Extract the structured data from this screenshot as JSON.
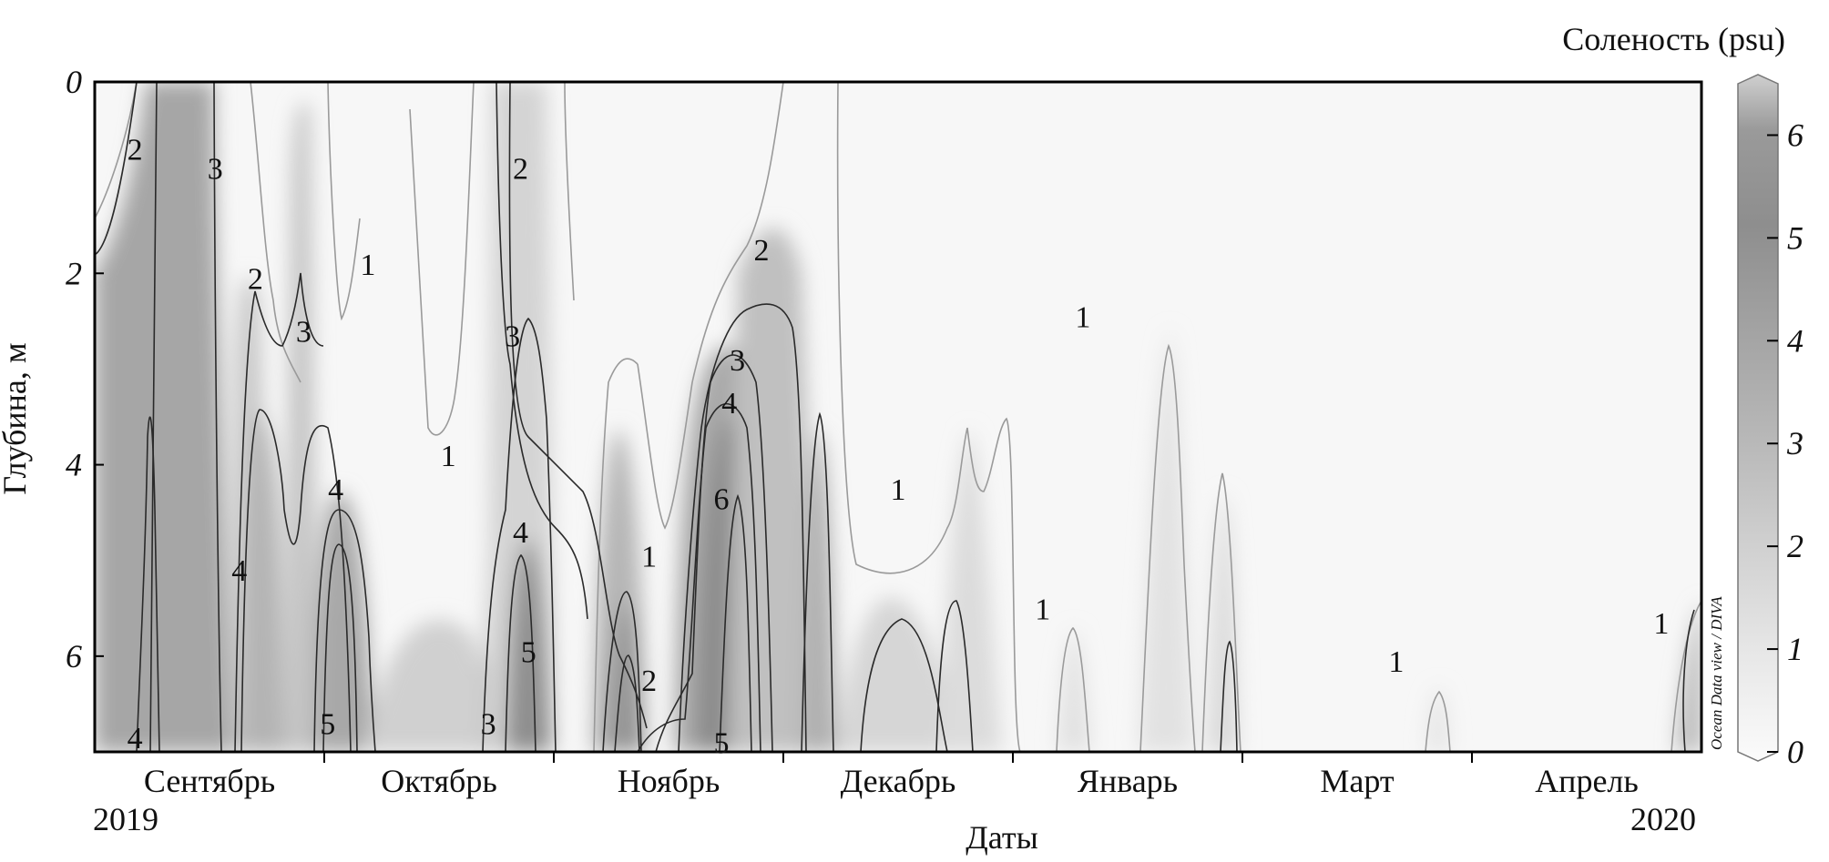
{
  "chart_data": {
    "type": "heatmap",
    "ylabel": "Глубина, м",
    "xlabel": "Даты",
    "colorbar_title": "Соленость (psu)",
    "watermark": "Ocean Data view / DIVA",
    "year_start": "2019",
    "year_end": "2020",
    "colorscale": "grayscale",
    "ylim": [
      7,
      0
    ],
    "yaxis_inverted": true,
    "y_ticks": [
      "0",
      "2",
      "4",
      "6"
    ],
    "x_ticks": [
      "Сентябрь",
      "Октябрь",
      "Ноябрь",
      "Декабрь",
      "Январь",
      "Март",
      "Апрель"
    ],
    "colorbar_range": [
      0,
      6.5
    ],
    "colorbar_ticks": [
      "0",
      "1",
      "2",
      "3",
      "4",
      "5",
      "6"
    ],
    "contour_levels": [
      1,
      2,
      3,
      4,
      5,
      6
    ],
    "contour_labels": [
      {
        "text": "2",
        "x": 0.025,
        "y": 0.7
      },
      {
        "text": "3",
        "x": 0.075,
        "y": 0.9
      },
      {
        "text": "2",
        "x": 0.1,
        "y": 2.05
      },
      {
        "text": "3",
        "x": 0.13,
        "y": 2.6
      },
      {
        "text": "4",
        "x": 0.09,
        "y": 5.1
      },
      {
        "text": "4",
        "x": 0.025,
        "y": 6.85
      },
      {
        "text": "4",
        "x": 0.15,
        "y": 4.25
      },
      {
        "text": "5",
        "x": 0.145,
        "y": 6.7
      },
      {
        "text": "1",
        "x": 0.17,
        "y": 1.9
      },
      {
        "text": "1",
        "x": 0.22,
        "y": 3.9
      },
      {
        "text": "2",
        "x": 0.265,
        "y": 0.9
      },
      {
        "text": "3",
        "x": 0.26,
        "y": 2.65
      },
      {
        "text": "4",
        "x": 0.265,
        "y": 4.7
      },
      {
        "text": "5",
        "x": 0.27,
        "y": 5.95
      },
      {
        "text": "3",
        "x": 0.245,
        "y": 6.7
      },
      {
        "text": "1",
        "x": 0.345,
        "y": 4.95
      },
      {
        "text": "2",
        "x": 0.345,
        "y": 6.25
      },
      {
        "text": "2",
        "x": 0.415,
        "y": 1.75
      },
      {
        "text": "3",
        "x": 0.4,
        "y": 2.9
      },
      {
        "text": "4",
        "x": 0.395,
        "y": 3.35
      },
      {
        "text": "6",
        "x": 0.39,
        "y": 4.35
      },
      {
        "text": "5",
        "x": 0.39,
        "y": 6.9
      },
      {
        "text": "1",
        "x": 0.5,
        "y": 4.25
      },
      {
        "text": "1",
        "x": 0.615,
        "y": 2.45
      },
      {
        "text": "1",
        "x": 0.59,
        "y": 5.5
      },
      {
        "text": "1",
        "x": 0.81,
        "y": 6.05
      },
      {
        "text": "1",
        "x": 0.975,
        "y": 5.65
      }
    ]
  }
}
